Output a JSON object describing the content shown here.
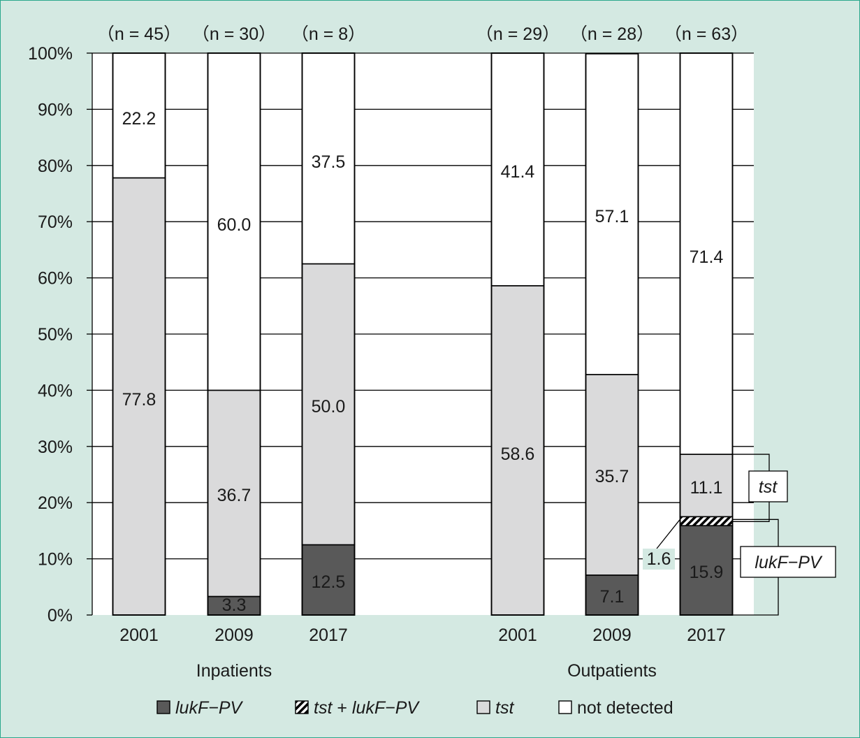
{
  "chart_data": {
    "type": "bar",
    "stacked": true,
    "orientation": "vertical",
    "ylim": [
      0,
      100
    ],
    "y_ticks": [
      "0%",
      "10%",
      "20%",
      "30%",
      "40%",
      "50%",
      "60%",
      "70%",
      "80%",
      "90%",
      "100%"
    ],
    "grid": "horizontal",
    "groups": [
      {
        "label": "Inpatients",
        "categories": [
          "2001",
          "2009",
          "2017"
        ],
        "n_labels": [
          "（n = 45）",
          "（n = 30）",
          "（n = 8）"
        ]
      },
      {
        "label": "Outpatients",
        "categories": [
          "2001",
          "2009",
          "2017"
        ],
        "n_labels": [
          "（n = 29）",
          "（n = 28）",
          "（n = 63）"
        ]
      }
    ],
    "series": [
      {
        "name": "lukF−PV",
        "color": "#595959",
        "pattern": "solid",
        "values": [
          0,
          3.3,
          12.5,
          0,
          7.1,
          15.9
        ],
        "labels": [
          "",
          "3.3",
          "12.5",
          "",
          "7.1",
          "15.9"
        ]
      },
      {
        "name": "tst + lukF−PV",
        "color": "#000000",
        "pattern": "hatch",
        "values": [
          0,
          0,
          0,
          0,
          0,
          1.6
        ],
        "labels": [
          "",
          "",
          "",
          "",
          "",
          "1.6"
        ]
      },
      {
        "name": "tst",
        "color": "#dadadb",
        "pattern": "solid",
        "values": [
          77.8,
          36.7,
          50.0,
          58.6,
          35.7,
          11.1
        ],
        "labels": [
          "77.8",
          "36.7",
          "50.0",
          "58.6",
          "35.7",
          "11.1"
        ]
      },
      {
        "name": "not detected",
        "color": "#ffffff",
        "pattern": "solid",
        "values": [
          22.2,
          60.0,
          37.5,
          41.4,
          57.1,
          71.4
        ],
        "labels": [
          "22.2",
          "60.0",
          "37.5",
          "41.4",
          "57.1",
          "71.4"
        ]
      }
    ],
    "callouts": [
      "tst",
      "lukF−PV"
    ],
    "legend": {
      "position": "bottom",
      "items": [
        {
          "label": "lukF−PV",
          "italic": true
        },
        {
          "label": "tst + lukF−PV",
          "italic": "partial"
        },
        {
          "label": "tst",
          "italic": true
        },
        {
          "label": "not detected",
          "italic": false
        }
      ]
    }
  }
}
